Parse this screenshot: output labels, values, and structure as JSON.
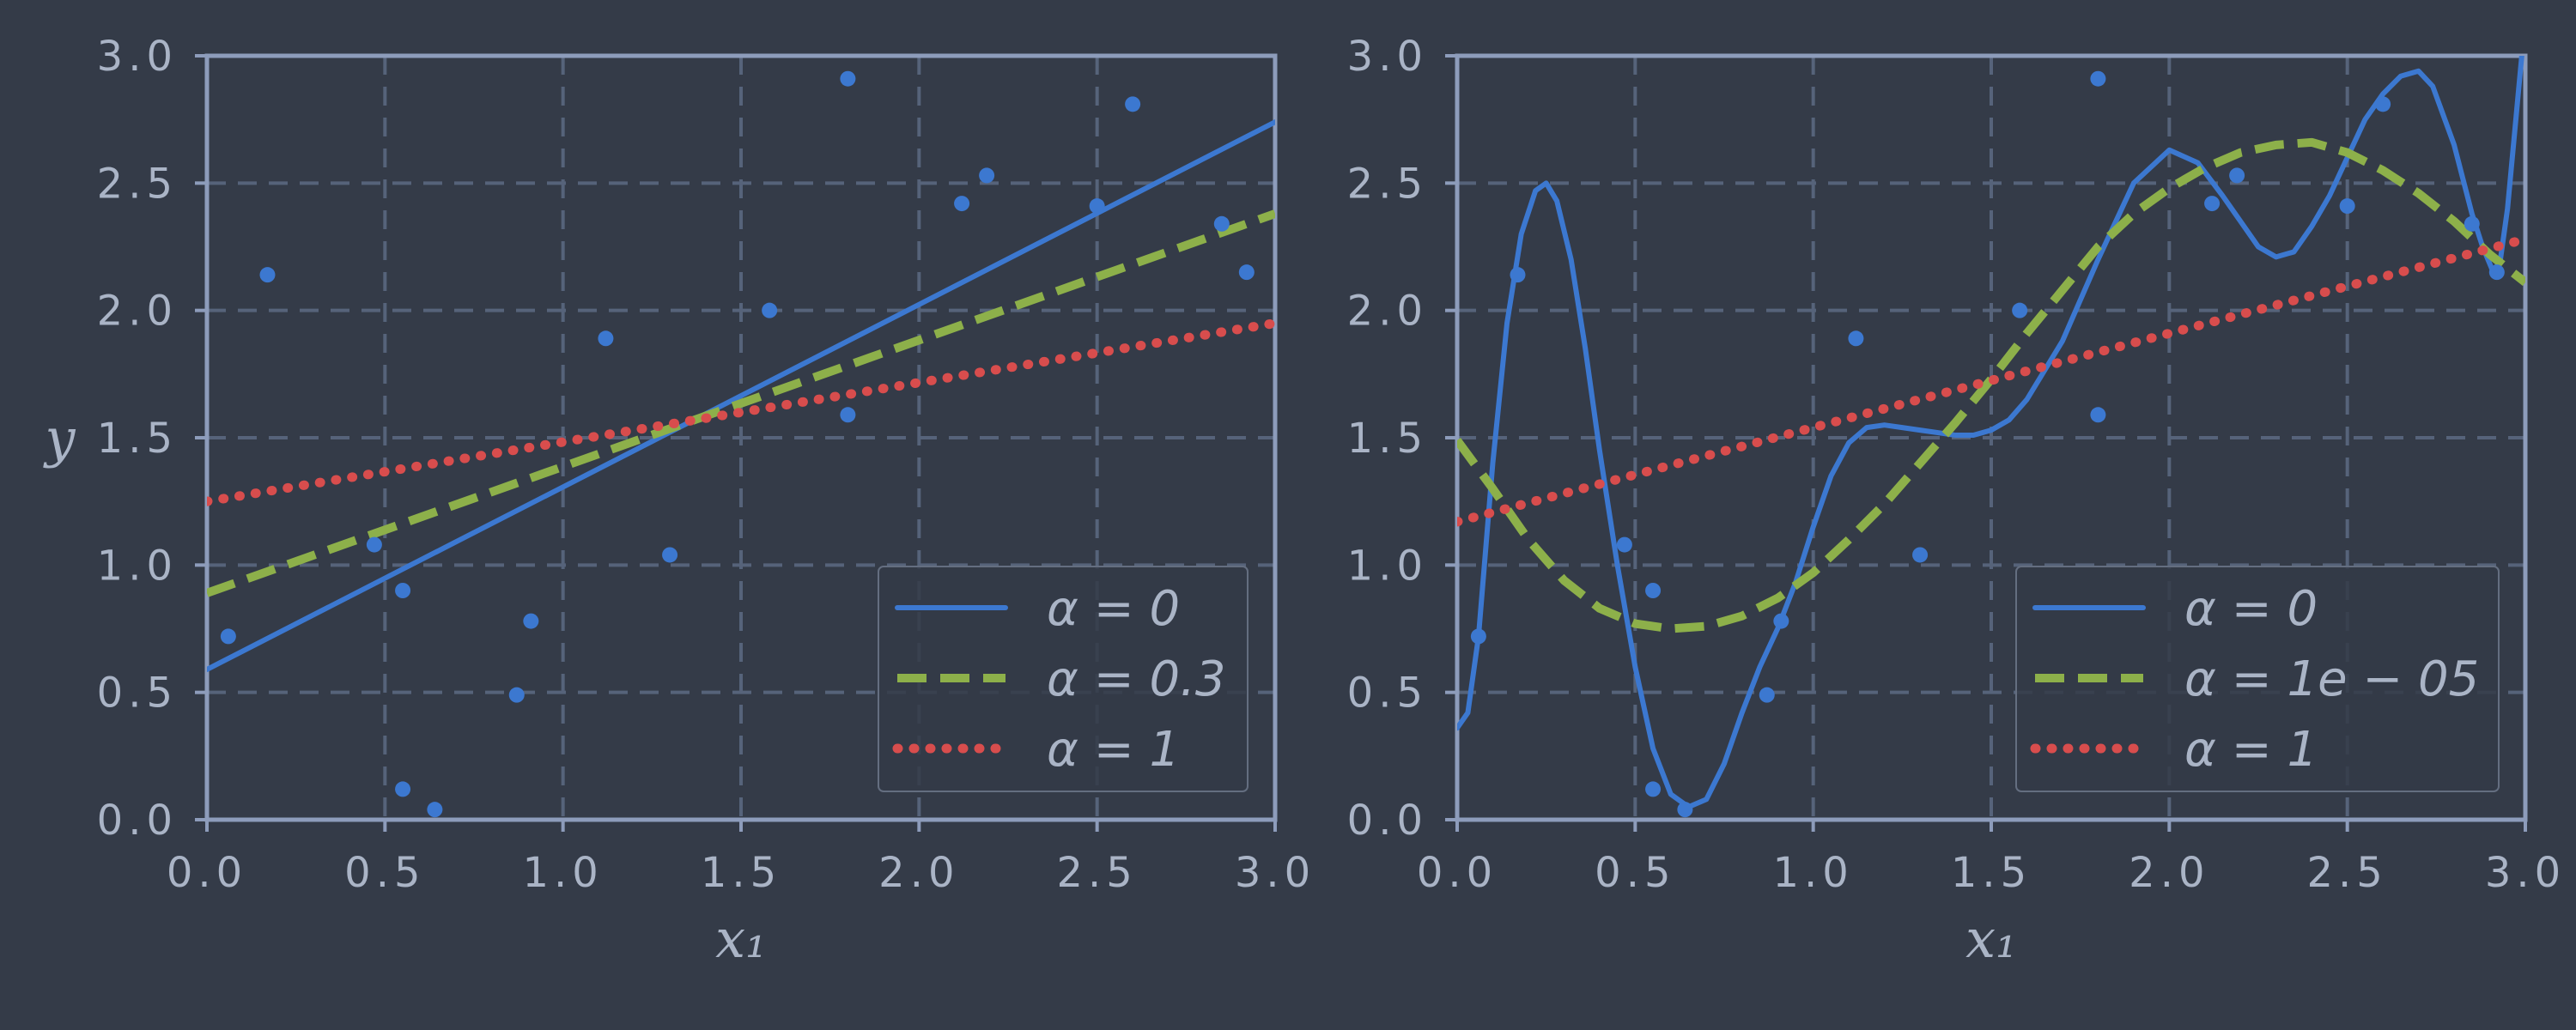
{
  "chart_data": [
    {
      "type": "scatter",
      "xlabel": "x₁",
      "ylabel": "y",
      "xlim": [
        0,
        3
      ],
      "ylim": [
        0,
        3
      ],
      "xticks": [
        "0.0",
        "0.5",
        "1.0",
        "1.5",
        "2.0",
        "2.5",
        "3.0"
      ],
      "yticks": [
        "0.0",
        "0.5",
        "1.0",
        "1.5",
        "2.0",
        "2.5",
        "3.0"
      ],
      "grid": true,
      "legend_position": "bottom-right",
      "points": {
        "x": [
          0.06,
          0.17,
          0.47,
          0.55,
          0.55,
          0.64,
          0.87,
          0.91,
          1.12,
          1.3,
          1.58,
          1.8,
          1.8,
          2.12,
          2.19,
          2.5,
          2.6,
          2.85,
          2.92
        ],
        "y": [
          0.72,
          2.14,
          1.08,
          0.9,
          0.12,
          0.04,
          0.49,
          0.78,
          1.89,
          1.04,
          2.0,
          2.91,
          1.59,
          2.42,
          2.53,
          2.41,
          2.81,
          2.34,
          2.15
        ]
      },
      "series": [
        {
          "name": "α = 0",
          "style": "solid",
          "color": "#3c78d0",
          "x": [
            0,
            3
          ],
          "y": [
            0.59,
            2.74
          ]
        },
        {
          "name": "α = 0.3",
          "style": "dashed",
          "color": "#8db04a",
          "x": [
            0,
            3
          ],
          "y": [
            0.89,
            2.38
          ]
        },
        {
          "name": "α = 1",
          "style": "dotted",
          "color": "#d84d4d",
          "x": [
            0,
            3
          ],
          "y": [
            1.25,
            1.95
          ]
        }
      ]
    },
    {
      "type": "scatter",
      "xlabel": "x₁",
      "ylabel": "",
      "xlim": [
        0,
        3
      ],
      "ylim": [
        0,
        3
      ],
      "xticks": [
        "0.0",
        "0.5",
        "1.0",
        "1.5",
        "2.0",
        "2.5",
        "3.0"
      ],
      "yticks": [
        "0.0",
        "0.5",
        "1.0",
        "1.5",
        "2.0",
        "2.5",
        "3.0"
      ],
      "grid": true,
      "legend_position": "bottom-right",
      "points": {
        "x": [
          0.06,
          0.17,
          0.47,
          0.55,
          0.55,
          0.64,
          0.87,
          0.91,
          1.12,
          1.3,
          1.58,
          1.8,
          1.8,
          2.12,
          2.19,
          2.5,
          2.6,
          2.85,
          2.92
        ],
        "y": [
          0.72,
          2.14,
          1.08,
          0.9,
          0.12,
          0.04,
          0.49,
          0.78,
          1.89,
          1.04,
          2.0,
          2.91,
          1.59,
          2.42,
          2.53,
          2.41,
          2.81,
          2.34,
          2.15
        ]
      },
      "series": [
        {
          "name": "α = 0",
          "style": "solid",
          "color": "#3c78d0",
          "x": [
            0.0,
            0.03,
            0.06,
            0.1,
            0.14,
            0.18,
            0.22,
            0.25,
            0.28,
            0.32,
            0.36,
            0.4,
            0.45,
            0.5,
            0.55,
            0.6,
            0.65,
            0.7,
            0.75,
            0.8,
            0.85,
            0.9,
            0.95,
            1.0,
            1.05,
            1.1,
            1.15,
            1.2,
            1.25,
            1.3,
            1.35,
            1.4,
            1.45,
            1.5,
            1.55,
            1.6,
            1.7,
            1.8,
            1.9,
            2.0,
            2.08,
            2.15,
            2.2,
            2.25,
            2.3,
            2.35,
            2.4,
            2.45,
            2.5,
            2.55,
            2.6,
            2.65,
            2.7,
            2.74,
            2.8,
            2.85,
            2.88,
            2.91,
            2.93,
            2.95,
            2.97,
            2.99
          ],
          "y": [
            0.36,
            0.42,
            0.72,
            1.4,
            1.95,
            2.3,
            2.47,
            2.5,
            2.43,
            2.2,
            1.85,
            1.45,
            1.0,
            0.6,
            0.28,
            0.1,
            0.05,
            0.08,
            0.22,
            0.42,
            0.6,
            0.75,
            0.93,
            1.15,
            1.35,
            1.48,
            1.54,
            1.55,
            1.54,
            1.53,
            1.52,
            1.51,
            1.51,
            1.53,
            1.57,
            1.65,
            1.88,
            2.2,
            2.5,
            2.63,
            2.58,
            2.45,
            2.35,
            2.25,
            2.21,
            2.23,
            2.33,
            2.45,
            2.6,
            2.75,
            2.85,
            2.92,
            2.94,
            2.88,
            2.65,
            2.38,
            2.25,
            2.15,
            2.2,
            2.4,
            2.7,
            3.0
          ]
        },
        {
          "name": "α = 1e − 05",
          "style": "dashed",
          "color": "#8db04a",
          "x": [
            0.0,
            0.1,
            0.2,
            0.3,
            0.4,
            0.5,
            0.6,
            0.7,
            0.8,
            0.9,
            1.0,
            1.1,
            1.2,
            1.3,
            1.4,
            1.5,
            1.6,
            1.7,
            1.8,
            1.9,
            2.0,
            2.1,
            2.2,
            2.3,
            2.4,
            2.5,
            2.6,
            2.7,
            2.8,
            2.9,
            3.0
          ],
          "y": [
            1.49,
            1.3,
            1.1,
            0.94,
            0.83,
            0.77,
            0.75,
            0.76,
            0.8,
            0.87,
            0.97,
            1.1,
            1.24,
            1.4,
            1.56,
            1.73,
            1.91,
            2.08,
            2.25,
            2.38,
            2.48,
            2.56,
            2.62,
            2.65,
            2.66,
            2.62,
            2.55,
            2.46,
            2.35,
            2.22,
            2.11
          ]
        },
        {
          "name": "α = 1",
          "style": "dotted",
          "color": "#d84d4d",
          "x": [
            0,
            3
          ],
          "y": [
            1.17,
            2.28
          ]
        }
      ]
    }
  ]
}
